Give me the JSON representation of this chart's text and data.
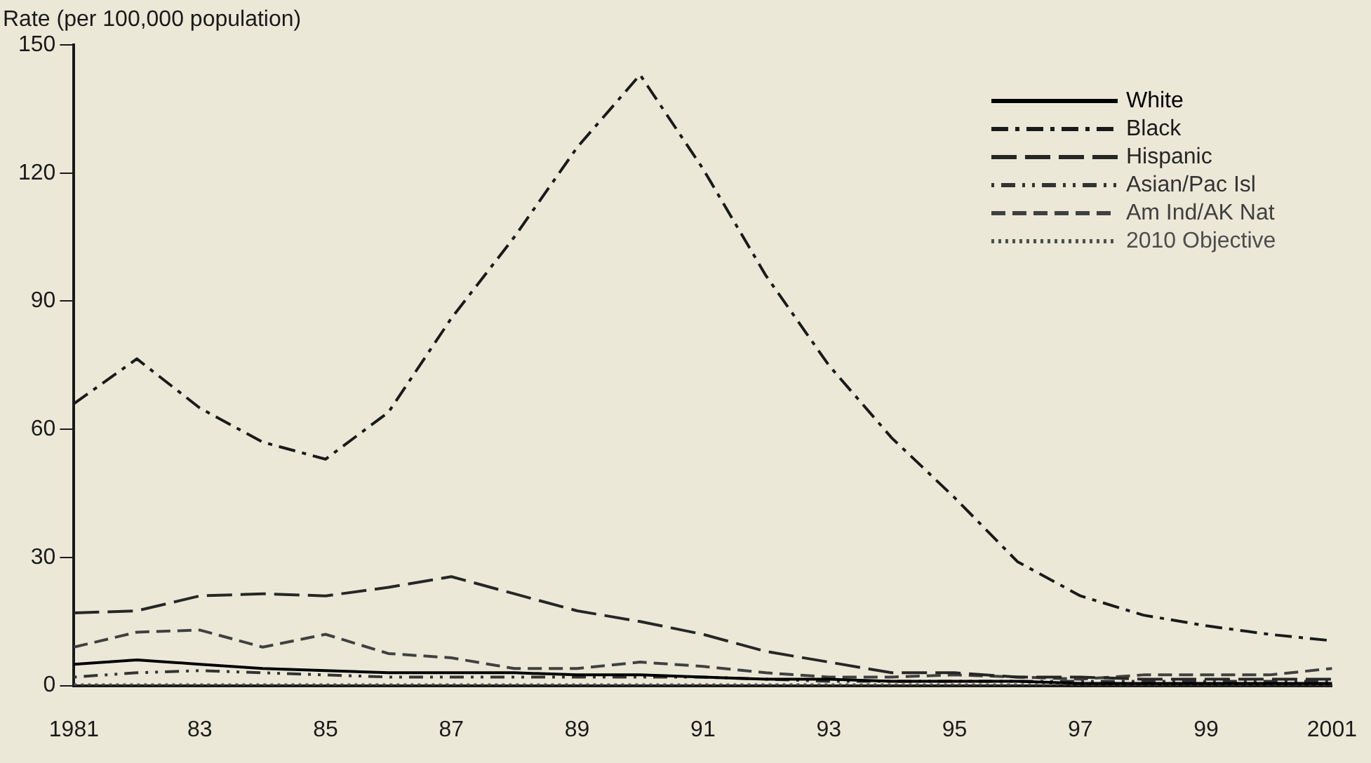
{
  "chart_data": {
    "type": "line",
    "ylabel": "Rate (per 100,000 population)",
    "categories": [
      "1981",
      null,
      "83",
      null,
      "85",
      null,
      "87",
      null,
      "89",
      null,
      "91",
      null,
      "93",
      null,
      "95",
      null,
      "97",
      null,
      "99",
      null,
      "2001"
    ],
    "ylim": [
      0,
      150
    ],
    "yticks": [
      0,
      30,
      60,
      90,
      120,
      150
    ],
    "grid": false,
    "legend": "top right",
    "marker": "none",
    "series": [
      {
        "name": "White",
        "color": "#000000",
        "line_style": "solid",
        "values": [
          5,
          6,
          5,
          4,
          3.5,
          3,
          3,
          3,
          2.5,
          2.5,
          2,
          1.5,
          1.5,
          1,
          1,
          1,
          0.5,
          0.5,
          0.5,
          0.5,
          0.5
        ]
      },
      {
        "name": "Black",
        "color": "#1a1a1a",
        "line_style": "dashed",
        "values": [
          66,
          76.5,
          65,
          57,
          53,
          64,
          86,
          105,
          126,
          143,
          121,
          96,
          75,
          58,
          44,
          29,
          21,
          16.5,
          14,
          12,
          10.5
        ]
      },
      {
        "name": "Hispanic",
        "color": "#262626",
        "line_style": "dashed",
        "values": [
          17,
          17.5,
          21,
          21.5,
          21,
          23,
          25.5,
          21.5,
          17.5,
          15,
          12,
          8,
          5.5,
          3,
          3,
          2,
          2,
          1.5,
          1.5,
          1.5,
          1.5
        ]
      },
      {
        "name": "Asian/Pac Isl",
        "color": "#333333",
        "line_style": "dashed",
        "values": [
          2,
          3,
          3.5,
          3,
          2.5,
          2,
          2,
          2,
          2,
          2,
          2,
          1.5,
          1,
          1,
          1,
          1,
          1,
          1,
          1,
          1,
          1
        ]
      },
      {
        "name": "Am Ind/AK Nat",
        "color": "#404040",
        "line_style": "dashed",
        "values": [
          9,
          12.5,
          13,
          9,
          12,
          7.5,
          6.5,
          4,
          4,
          5.5,
          4.5,
          3,
          2,
          2,
          2.5,
          2,
          1.5,
          2.5,
          2.5,
          2.5,
          4
        ]
      },
      {
        "name": "2010 Objective",
        "color": "#4d4d4d",
        "line_style": "dotted",
        "values": [
          0.2,
          0.2,
          0.2,
          0.2,
          0.2,
          0.2,
          0.2,
          0.2,
          0.2,
          0.2,
          0.2,
          0.2,
          0.2,
          0.2,
          0.2,
          0.2,
          0.2,
          0.2,
          0.2,
          0.2,
          0.2
        ]
      }
    ]
  }
}
